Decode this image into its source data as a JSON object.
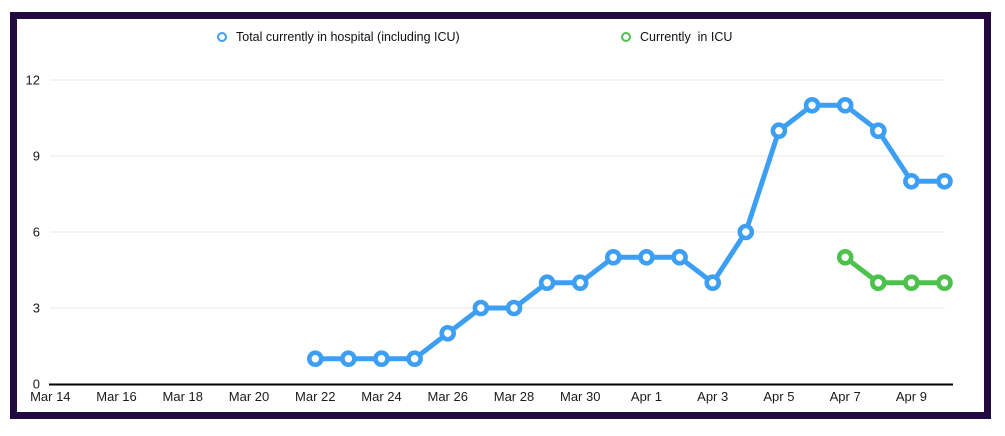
{
  "page": {
    "background_color": "#ffffff",
    "frame_color": "#200a40"
  },
  "legend": {
    "items": [
      {
        "label": "Total currently in hospital (including ICU)",
        "color": "#3d9ff3"
      },
      {
        "label": "Currently  in ICU",
        "color": "#4cc24c"
      }
    ]
  },
  "chart_data": {
    "type": "line",
    "title": "",
    "xlabel": "",
    "ylabel": "",
    "grid": true,
    "legend_position": "top",
    "ylim": [
      0,
      12
    ],
    "y_ticks": [
      0,
      3,
      6,
      9,
      12
    ],
    "x_tick_labels": [
      "Mar 14",
      "Mar 16",
      "Mar 18",
      "Mar 20",
      "Mar 22",
      "Mar 24",
      "Mar 26",
      "Mar 28",
      "Mar 30",
      "Apr 1",
      "Apr 3",
      "Apr 5",
      "Apr 7",
      "Apr 9"
    ],
    "all_dates": [
      "Mar 14",
      "Mar 15",
      "Mar 16",
      "Mar 17",
      "Mar 18",
      "Mar 19",
      "Mar 20",
      "Mar 21",
      "Mar 22",
      "Mar 23",
      "Mar 24",
      "Mar 25",
      "Mar 26",
      "Mar 27",
      "Mar 28",
      "Mar 29",
      "Mar 30",
      "Mar 31",
      "Apr 1",
      "Apr 2",
      "Apr 3",
      "Apr 4",
      "Apr 5",
      "Apr 6",
      "Apr 7",
      "Apr 8",
      "Apr 9",
      "Apr 10"
    ],
    "series": [
      {
        "name": "Total currently in hospital (including ICU)",
        "color": "#3d9ff3",
        "points": [
          {
            "date": "Mar 22",
            "value": 1
          },
          {
            "date": "Mar 23",
            "value": 1
          },
          {
            "date": "Mar 24",
            "value": 1
          },
          {
            "date": "Mar 25",
            "value": 1
          },
          {
            "date": "Mar 26",
            "value": 2
          },
          {
            "date": "Mar 27",
            "value": 3
          },
          {
            "date": "Mar 28",
            "value": 3
          },
          {
            "date": "Mar 29",
            "value": 4
          },
          {
            "date": "Mar 30",
            "value": 4
          },
          {
            "date": "Mar 31",
            "value": 5
          },
          {
            "date": "Apr 1",
            "value": 5
          },
          {
            "date": "Apr 2",
            "value": 5
          },
          {
            "date": "Apr 3",
            "value": 4
          },
          {
            "date": "Apr 4",
            "value": 6
          },
          {
            "date": "Apr 5",
            "value": 10
          },
          {
            "date": "Apr 6",
            "value": 11
          },
          {
            "date": "Apr 7",
            "value": 11
          },
          {
            "date": "Apr 8",
            "value": 10
          },
          {
            "date": "Apr 9",
            "value": 8
          },
          {
            "date": "Apr 10",
            "value": 8
          }
        ]
      },
      {
        "name": "Currently  in ICU",
        "color": "#4cc24c",
        "points": [
          {
            "date": "Apr 7",
            "value": 5
          },
          {
            "date": "Apr 8",
            "value": 4
          },
          {
            "date": "Apr 9",
            "value": 4
          },
          {
            "date": "Apr 10",
            "value": 4
          }
        ]
      }
    ],
    "colors": {
      "gridline": "#e7e7e7",
      "axis_line": "#000000",
      "tick_text": "#1a1a1a"
    }
  }
}
